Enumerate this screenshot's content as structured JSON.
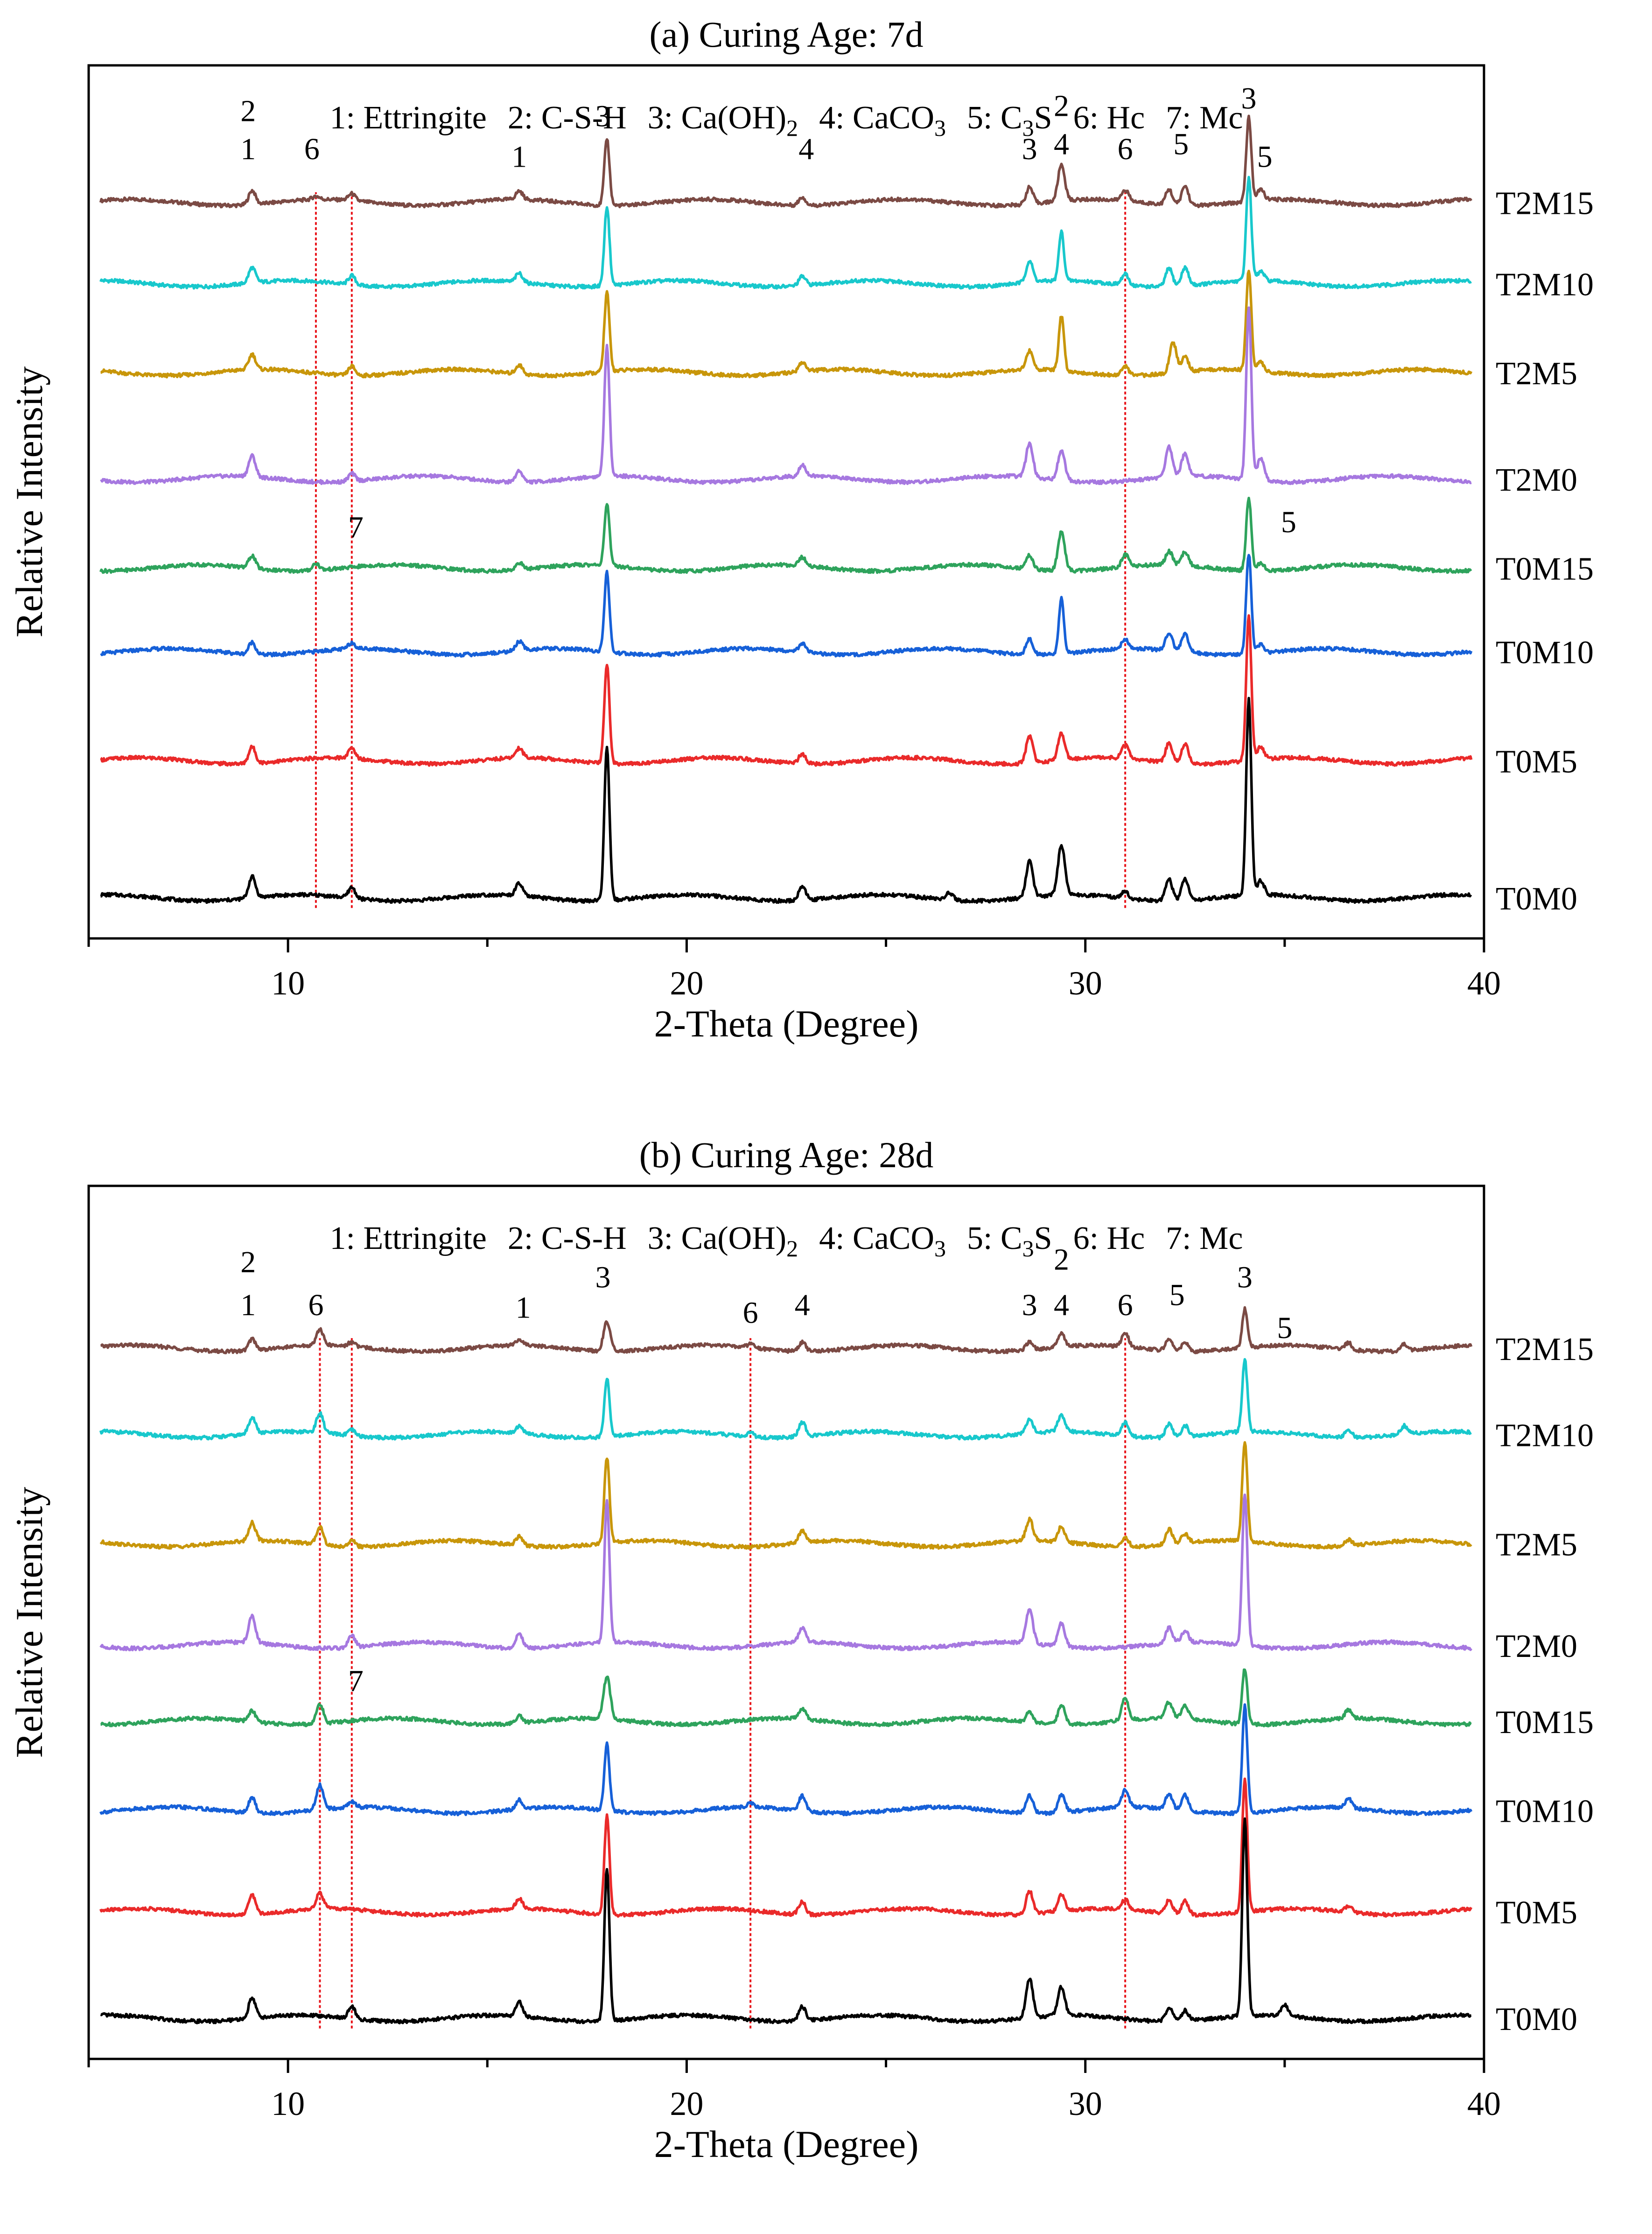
{
  "legend_text": "1: Ettringite  2: C-S-H  3: Ca(OH)2  4: CaCO3  5: C3S  6: Hc  7: Mc",
  "legend_parts": {
    "ettringite": "1: Ettringite",
    "csh": "2: C-S-H",
    "caoh2_pre": "3: Ca(OH)",
    "caoh2_sub": "2",
    "caco3_pre": "4: CaCO",
    "caco3_sub": "3",
    "c3s_pre": "5: C",
    "c3s_sub": "3",
    "c3s_post": "S",
    "hc": "6: Hc",
    "mc": "7: Mc"
  },
  "colors": {
    "T2M15": "#7b4a44",
    "T2M10": "#18c8cc",
    "T2M5": "#c8960a",
    "T2M0": "#a678e0",
    "T0M15": "#2ea35c",
    "T0M10": "#1660d8",
    "T0M5": "#ea2a2a",
    "T0M0": "#000000",
    "reference_line": "#e8141a"
  },
  "chart_data": [
    {
      "type": "line",
      "title": "(a) Curing Age: 7d",
      "xlabel": "2-Theta (Degree)",
      "ylabel": "Relative Intensity",
      "xlim": [
        5,
        40
      ],
      "xticks": [
        10,
        20,
        30,
        40
      ],
      "ylim": [
        -0.8,
        16.4
      ],
      "reference_lines_x": [
        10.7,
        11.6,
        31.0
      ],
      "peak_labels": [
        {
          "text": "2",
          "x": 9.0,
          "y": 15.3
        },
        {
          "text": "1",
          "x": 9.0,
          "y": 14.55
        },
        {
          "text": "6",
          "x": 10.6,
          "y": 14.55
        },
        {
          "text": "1",
          "x": 15.8,
          "y": 14.4
        },
        {
          "text": "3",
          "x": 17.9,
          "y": 15.2
        },
        {
          "text": "4",
          "x": 23.0,
          "y": 14.55
        },
        {
          "text": "3",
          "x": 28.6,
          "y": 14.55
        },
        {
          "text": "2",
          "x": 29.4,
          "y": 15.4
        },
        {
          "text": "4",
          "x": 29.4,
          "y": 14.65
        },
        {
          "text": "6",
          "x": 31.0,
          "y": 14.55
        },
        {
          "text": "5",
          "x": 32.4,
          "y": 14.65
        },
        {
          "text": "3",
          "x": 34.1,
          "y": 15.55
        },
        {
          "text": "5",
          "x": 34.5,
          "y": 14.4
        },
        {
          "text": "7",
          "x": 11.7,
          "y": 7.1
        },
        {
          "text": "5",
          "x": 35.1,
          "y": 7.2
        }
      ],
      "series": [
        {
          "name": "T2M15",
          "offset": 13.7,
          "scale": 0.55,
          "peaks": [
            [
              9.1,
              0.5
            ],
            [
              10.7,
              0.12
            ],
            [
              11.6,
              0.25
            ],
            [
              15.8,
              0.3
            ],
            [
              18.0,
              2.4
            ],
            [
              22.9,
              0.3
            ],
            [
              28.6,
              0.6
            ],
            [
              29.4,
              1.3
            ],
            [
              31.0,
              0.4
            ],
            [
              32.1,
              0.55
            ],
            [
              32.5,
              0.7
            ],
            [
              34.1,
              3.0
            ],
            [
              34.4,
              0.4
            ]
          ]
        },
        {
          "name": "T2M10",
          "offset": 12.1,
          "scale": 0.6,
          "peaks": [
            [
              9.1,
              0.5
            ],
            [
              11.6,
              0.3
            ],
            [
              15.8,
              0.3
            ],
            [
              18.0,
              2.6
            ],
            [
              22.9,
              0.3
            ],
            [
              28.6,
              0.7
            ],
            [
              29.4,
              1.6
            ],
            [
              31.0,
              0.35
            ],
            [
              32.1,
              0.6
            ],
            [
              32.5,
              0.6
            ],
            [
              34.1,
              3.4
            ],
            [
              34.4,
              0.3
            ]
          ]
        },
        {
          "name": "T2M5",
          "offset": 10.35,
          "scale": 0.6,
          "peaks": [
            [
              9.1,
              0.5
            ],
            [
              11.6,
              0.3
            ],
            [
              15.8,
              0.3
            ],
            [
              18.0,
              2.6
            ],
            [
              22.9,
              0.3
            ],
            [
              28.6,
              0.6
            ],
            [
              29.4,
              1.8
            ],
            [
              31.0,
              0.3
            ],
            [
              32.2,
              1.0
            ],
            [
              32.5,
              0.5
            ],
            [
              34.1,
              3.3
            ],
            [
              34.4,
              0.3
            ]
          ]
        },
        {
          "name": "T2M0",
          "offset": 8.25,
          "scale": 0.75,
          "peaks": [
            [
              9.1,
              0.55
            ],
            [
              11.6,
              0.2
            ],
            [
              15.8,
              0.3
            ],
            [
              18.0,
              3.4
            ],
            [
              22.9,
              0.3
            ],
            [
              28.6,
              0.9
            ],
            [
              29.4,
              0.8
            ],
            [
              32.1,
              0.8
            ],
            [
              32.5,
              0.6
            ],
            [
              34.1,
              4.5
            ],
            [
              34.4,
              0.6
            ]
          ]
        },
        {
          "name": "T0M15",
          "offset": 6.5,
          "scale": 0.55,
          "peaks": [
            [
              9.1,
              0.45
            ],
            [
              10.7,
              0.25
            ],
            [
              15.8,
              0.25
            ],
            [
              18.0,
              2.2
            ],
            [
              22.9,
              0.3
            ],
            [
              28.6,
              0.5
            ],
            [
              29.4,
              1.4
            ],
            [
              31.0,
              0.45
            ],
            [
              32.1,
              0.5
            ],
            [
              32.5,
              0.5
            ],
            [
              34.1,
              2.6
            ],
            [
              34.4,
              0.3
            ]
          ]
        },
        {
          "name": "T0M10",
          "offset": 4.85,
          "scale": 0.6,
          "peaks": [
            [
              9.1,
              0.4
            ],
            [
              11.6,
              0.2
            ],
            [
              15.8,
              0.3
            ],
            [
              18.0,
              2.6
            ],
            [
              22.9,
              0.3
            ],
            [
              28.6,
              0.5
            ],
            [
              29.4,
              1.8
            ],
            [
              31.0,
              0.3
            ],
            [
              32.1,
              0.6
            ],
            [
              32.5,
              0.6
            ],
            [
              34.1,
              3.3
            ],
            [
              34.4,
              0.3
            ]
          ]
        },
        {
          "name": "T0M5",
          "offset": 2.7,
          "scale": 0.65,
          "peaks": [
            [
              9.1,
              0.5
            ],
            [
              11.6,
              0.3
            ],
            [
              15.8,
              0.3
            ],
            [
              18.0,
              3.0
            ],
            [
              22.9,
              0.3
            ],
            [
              28.6,
              0.8
            ],
            [
              29.4,
              0.8
            ],
            [
              31.0,
              0.4
            ],
            [
              32.1,
              0.6
            ],
            [
              32.5,
              0.6
            ],
            [
              34.1,
              4.4
            ],
            [
              34.4,
              0.4
            ]
          ]
        },
        {
          "name": "T0M0",
          "offset": 0.0,
          "scale": 0.7,
          "peaks": [
            [
              9.1,
              0.6
            ],
            [
              11.6,
              0.3
            ],
            [
              15.8,
              0.35
            ],
            [
              18.0,
              4.3
            ],
            [
              22.9,
              0.4
            ],
            [
              26.6,
              0.2
            ],
            [
              28.6,
              1.0
            ],
            [
              29.4,
              1.4
            ],
            [
              31.0,
              0.2
            ],
            [
              32.1,
              0.6
            ],
            [
              32.5,
              0.6
            ],
            [
              34.1,
              5.5
            ],
            [
              34.4,
              0.4
            ]
          ]
        }
      ]
    },
    {
      "type": "line",
      "title": "(b) Curing Age: 28d",
      "xlabel": "2-Theta (Degree)",
      "ylabel": "Relative Intensity",
      "xlim": [
        5,
        40
      ],
      "xticks": [
        10,
        20,
        30,
        40
      ],
      "ylim": [
        -0.8,
        16.4
      ],
      "reference_lines_x": [
        10.8,
        11.6,
        21.6,
        31.0
      ],
      "peak_labels": [
        {
          "text": "2",
          "x": 9.0,
          "y": 14.7
        },
        {
          "text": "1",
          "x": 9.0,
          "y": 13.85
        },
        {
          "text": "6",
          "x": 10.7,
          "y": 13.85
        },
        {
          "text": "1",
          "x": 15.9,
          "y": 13.8
        },
        {
          "text": "3",
          "x": 17.9,
          "y": 14.4
        },
        {
          "text": "6",
          "x": 21.6,
          "y": 13.7
        },
        {
          "text": "4",
          "x": 22.9,
          "y": 13.85
        },
        {
          "text": "3",
          "x": 28.6,
          "y": 13.85
        },
        {
          "text": "2",
          "x": 29.4,
          "y": 14.75
        },
        {
          "text": "4",
          "x": 29.4,
          "y": 13.85
        },
        {
          "text": "6",
          "x": 31.0,
          "y": 13.85
        },
        {
          "text": "5",
          "x": 32.3,
          "y": 14.05
        },
        {
          "text": "3",
          "x": 34.0,
          "y": 14.4
        },
        {
          "text": "5",
          "x": 35.0,
          "y": 13.4
        },
        {
          "text": "7",
          "x": 11.7,
          "y": 6.45
        }
      ],
      "series": [
        {
          "name": "T2M15",
          "offset": 13.2,
          "scale": 0.45,
          "peaks": [
            [
              9.1,
              0.5
            ],
            [
              10.8,
              0.7
            ],
            [
              11.6,
              0.2
            ],
            [
              15.8,
              0.25
            ],
            [
              18.0,
              1.3
            ],
            [
              21.6,
              0.15
            ],
            [
              22.9,
              0.4
            ],
            [
              28.6,
              0.35
            ],
            [
              29.4,
              0.6
            ],
            [
              31.0,
              0.6
            ],
            [
              32.1,
              0.5
            ],
            [
              32.5,
              0.4
            ],
            [
              34.0,
              1.7
            ],
            [
              36.6,
              0.3
            ],
            [
              38.0,
              0.3
            ]
          ]
        },
        {
          "name": "T2M10",
          "offset": 11.5,
          "scale": 0.55,
          "peaks": [
            [
              9.1,
              0.6
            ],
            [
              10.8,
              0.7
            ],
            [
              11.6,
              0.2
            ],
            [
              15.8,
              0.25
            ],
            [
              18.0,
              2.1
            ],
            [
              21.6,
              0.15
            ],
            [
              22.9,
              0.5
            ],
            [
              28.6,
              0.5
            ],
            [
              29.4,
              0.6
            ],
            [
              31.0,
              0.5
            ],
            [
              32.1,
              0.5
            ],
            [
              32.5,
              0.4
            ],
            [
              34.0,
              2.6
            ],
            [
              36.6,
              0.3
            ],
            [
              38.0,
              0.3
            ]
          ]
        },
        {
          "name": "T2M5",
          "offset": 9.35,
          "scale": 0.6,
          "peaks": [
            [
              9.1,
              0.6
            ],
            [
              10.8,
              0.6
            ],
            [
              11.6,
              0.2
            ],
            [
              15.8,
              0.3
            ],
            [
              18.0,
              2.8
            ],
            [
              22.9,
              0.4
            ],
            [
              28.6,
              0.7
            ],
            [
              29.4,
              0.5
            ],
            [
              31.0,
              0.3
            ],
            [
              32.1,
              0.5
            ],
            [
              32.5,
              0.3
            ],
            [
              34.0,
              3.3
            ],
            [
              36.6,
              0.2
            ]
          ]
        },
        {
          "name": "T2M0",
          "offset": 7.35,
          "scale": 0.75,
          "peaks": [
            [
              9.1,
              0.7
            ],
            [
              11.6,
              0.3
            ],
            [
              15.8,
              0.4
            ],
            [
              18.0,
              3.7
            ],
            [
              22.9,
              0.4
            ],
            [
              28.6,
              0.9
            ],
            [
              29.4,
              0.6
            ],
            [
              32.1,
              0.4
            ],
            [
              32.5,
              0.3
            ],
            [
              34.0,
              4.0
            ]
          ]
        },
        {
          "name": "T0M15",
          "offset": 5.85,
          "scale": 0.55,
          "peaks": [
            [
              9.1,
              0.4
            ],
            [
              10.8,
              0.7
            ],
            [
              15.8,
              0.25
            ],
            [
              18.0,
              1.5
            ],
            [
              22.9,
              0.4
            ],
            [
              28.6,
              0.35
            ],
            [
              29.4,
              0.7
            ],
            [
              31.0,
              0.8
            ],
            [
              32.1,
              0.6
            ],
            [
              32.5,
              0.5
            ],
            [
              34.0,
              2.0
            ],
            [
              36.6,
              0.3
            ]
          ]
        },
        {
          "name": "T0M10",
          "offset": 4.1,
          "scale": 0.6,
          "peaks": [
            [
              9.1,
              0.5
            ],
            [
              10.8,
              0.8
            ],
            [
              11.6,
              0.2
            ],
            [
              15.8,
              0.3
            ],
            [
              18.0,
              2.2
            ],
            [
              21.6,
              0.15
            ],
            [
              22.9,
              0.5
            ],
            [
              28.6,
              0.6
            ],
            [
              29.4,
              0.6
            ],
            [
              31.0,
              0.6
            ],
            [
              32.1,
              0.5
            ],
            [
              32.5,
              0.5
            ],
            [
              34.0,
              3.5
            ],
            [
              36.6,
              0.3
            ]
          ]
        },
        {
          "name": "T0M5",
          "offset": 2.1,
          "scale": 0.65,
          "peaks": [
            [
              9.1,
              0.6
            ],
            [
              10.8,
              0.5
            ],
            [
              15.8,
              0.3
            ],
            [
              18.0,
              3.0
            ],
            [
              22.9,
              0.4
            ],
            [
              28.6,
              0.7
            ],
            [
              29.4,
              0.5
            ],
            [
              31.0,
              0.3
            ],
            [
              32.1,
              0.4
            ],
            [
              32.5,
              0.4
            ],
            [
              34.0,
              4.0
            ],
            [
              36.6,
              0.2
            ]
          ]
        },
        {
          "name": "T0M0",
          "offset": 0.0,
          "scale": 0.7,
          "peaks": [
            [
              9.1,
              0.6
            ],
            [
              11.6,
              0.35
            ],
            [
              15.8,
              0.4
            ],
            [
              18.0,
              4.3
            ],
            [
              22.9,
              0.4
            ],
            [
              28.6,
              1.1
            ],
            [
              29.4,
              0.8
            ],
            [
              32.1,
              0.4
            ],
            [
              32.5,
              0.3
            ],
            [
              34.0,
              5.5
            ],
            [
              35.0,
              0.3
            ]
          ]
        }
      ]
    }
  ]
}
